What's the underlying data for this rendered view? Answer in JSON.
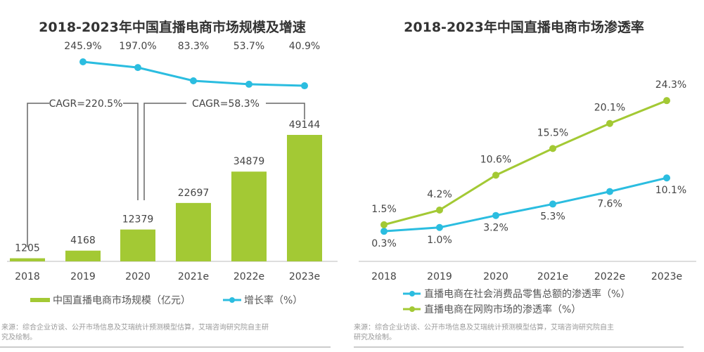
{
  "chart_data": [
    {
      "type": "bar",
      "title": "2018-2023年中国直播电商市场规模及增速",
      "categories": [
        "2018",
        "2019",
        "2020",
        "2021e",
        "2022e",
        "2023e"
      ],
      "series": [
        {
          "name": "中国直播电商市场规模（亿元）",
          "kind": "bar",
          "values": [
            1205,
            4168,
            12379,
            22697,
            34879,
            49144
          ],
          "labels": [
            "1205",
            "4168",
            "12379",
            "22697",
            "34879",
            "49144"
          ],
          "color": "#a3c934"
        },
        {
          "name": "增长率（%）",
          "kind": "line",
          "values": [
            null,
            245.9,
            197.0,
            83.3,
            53.7,
            40.9
          ],
          "labels": [
            "",
            "245.9%",
            "197.0%",
            "83.3%",
            "53.7%",
            "40.9%"
          ],
          "color": "#2bbde0"
        }
      ],
      "annotations": [
        "CAGR=220.5%",
        "CAGR=58.3%"
      ],
      "legend": "bottom",
      "grid": false
    },
    {
      "type": "line",
      "title": "2018-2023年中国直播电商市场渗透率",
      "categories": [
        "2018",
        "2019",
        "2020",
        "2021e",
        "2022e",
        "2023e"
      ],
      "series": [
        {
          "name": "直播电商在社会消费品零售总额的渗透率（%）",
          "values": [
            0.3,
            1.0,
            3.2,
            5.3,
            7.6,
            10.1
          ],
          "labels": [
            "0.3%",
            "1.0%",
            "3.2%",
            "5.3%",
            "7.6%",
            "10.1%"
          ],
          "color": "#2bbde0"
        },
        {
          "name": "直播电商在网购市场的渗透率（%）",
          "values": [
            1.5,
            4.2,
            10.6,
            15.5,
            20.1,
            24.3
          ],
          "labels": [
            "1.5%",
            "4.2%",
            "10.6%",
            "15.5%",
            "20.1%",
            "24.3%"
          ],
          "color": "#a3c934"
        }
      ],
      "legend": "bottom",
      "grid": false
    }
  ],
  "sources": [
    "来源：综合企业访谈、公开市场信息及艾瑞统计预测模型估算，艾瑞咨询研究院自主研究及绘制。",
    "来源：综合企业访谈、公开市场信息及艾瑞统计预测模型估算，艾瑞咨询研究院自主研究及绘制。"
  ]
}
